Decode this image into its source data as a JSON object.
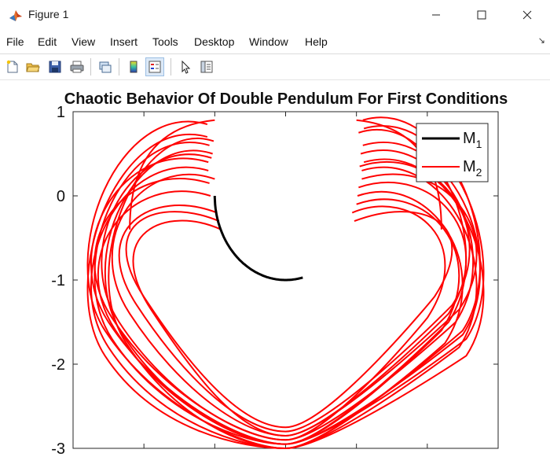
{
  "window": {
    "title": "Figure 1",
    "icon": "matlab-icon"
  },
  "menu": [
    "File",
    "Edit",
    "View",
    "Insert",
    "Tools",
    "Desktop",
    "Window",
    "Help"
  ],
  "toolbar": {
    "buttons": [
      "new-figure-icon",
      "open-file-icon",
      "save-icon",
      "print-icon",
      "link-plot-icon",
      "insert-colorbar-icon",
      "insert-legend-icon",
      "edit-plot-icon",
      "property-inspector-icon"
    ]
  },
  "chart_data": {
    "type": "line",
    "title": "Chaotic Behavior Of Double Pendulum For First Conditions",
    "xlabel": "",
    "ylabel": "",
    "xlim": [
      -3,
      3
    ],
    "ylim": [
      -3,
      1
    ],
    "y_ticks": [
      "1",
      "0",
      "-1",
      "-2",
      "-3"
    ],
    "legend": {
      "placement": "top-right",
      "entries": [
        {
          "base": "M",
          "sub": "1",
          "color": "#000000"
        },
        {
          "base": "M",
          "sub": "2",
          "color": "#ff0000"
        }
      ]
    },
    "series": [
      {
        "name": "M1",
        "color": "#000000",
        "shape": "arc",
        "description_values": {
          "center": [
            0,
            0
          ],
          "radius": 1,
          "theta_min_deg": -104,
          "theta_max_deg": 0
        }
      },
      {
        "name": "M2",
        "color": "#ff0000",
        "shape": "chaotic-loops",
        "description_values": {
          "x_range": [
            -2.95,
            2.95
          ],
          "y_range": [
            -3.0,
            0.92
          ],
          "loops": 14
        }
      }
    ]
  }
}
